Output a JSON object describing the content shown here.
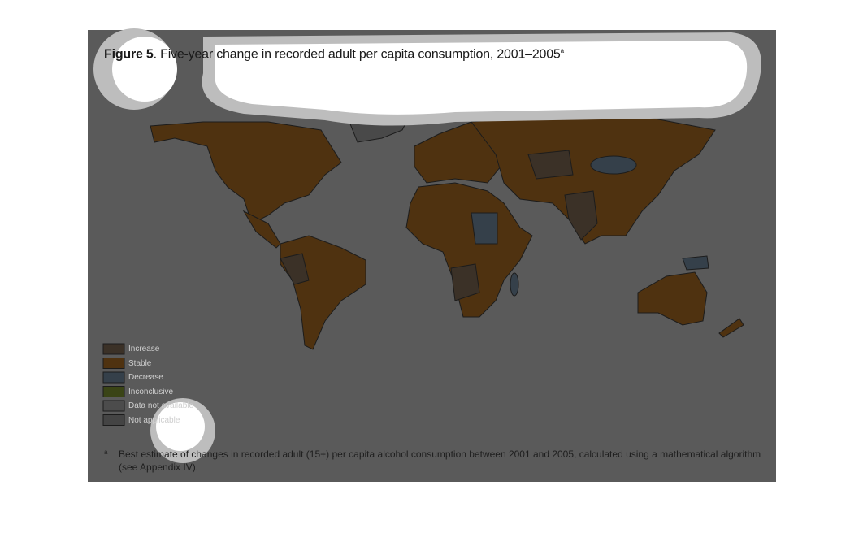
{
  "header": {
    "figure_label": "Figure 5",
    "title": ". Five-year change in recorded adult per capita consumption, 2001–2005",
    "title_note": "a"
  },
  "legend": [
    {
      "label": "Increase",
      "color": "#3b3127"
    },
    {
      "label": "Stable",
      "color": "#4f3210"
    },
    {
      "label": "Decrease",
      "color": "#35404a"
    },
    {
      "label": "Inconclusive",
      "color": "#3a4416"
    },
    {
      "label": "Data not available",
      "color": "#4c4c4c"
    },
    {
      "label": "Not applicable",
      "color": "#444444"
    }
  ],
  "footnote": {
    "marker": "a",
    "text": "Best estimate of changes in recorded adult (15+) per capita alcohol consumption between 2001 and 2005, calculated using a mathematical algorithm (see Appendix IV)."
  }
}
